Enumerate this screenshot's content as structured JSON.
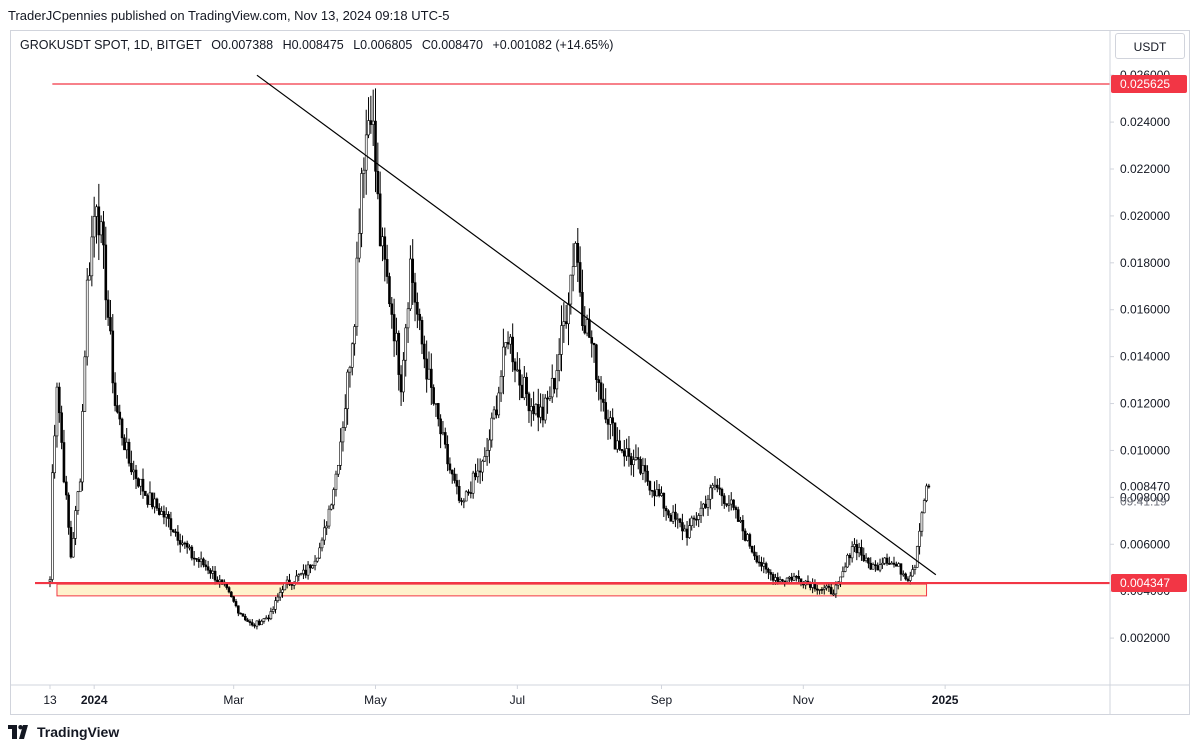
{
  "header": {
    "publisher": "TraderJCpennies published on TradingView.com, Nov 13, 2024 09:18 UTC-5"
  },
  "legend": {
    "symbol": "GROKUSDT SPOT, 1D, BITGET",
    "open": "O0.007388",
    "high": "H0.008475",
    "low": "L0.006805",
    "close": "C0.008470",
    "change": "+0.001082 (+14.65%)"
  },
  "unit_button": "USDT",
  "brand": {
    "name": "TradingView",
    "logo_icon": "tradingview-logo-icon"
  },
  "colors": {
    "candle": "#000000",
    "support_resistance": "#f23645",
    "zone_fill": "#fff2cc",
    "trendline": "#000000"
  },
  "chart_data": {
    "type": "candlestick",
    "x_tick_labels": [
      "13",
      "2024",
      "Mar",
      "May",
      "Jul",
      "Sep",
      "Nov",
      "2025"
    ],
    "y_ticks": [
      "0.002000",
      "0.004000",
      "0.006000",
      "0.008000",
      "0.010000",
      "0.012000",
      "0.014000",
      "0.016000",
      "0.018000",
      "0.020000",
      "0.022000",
      "0.024000",
      "0.026000"
    ],
    "y_tick_values": [
      0.002,
      0.004,
      0.006,
      0.008,
      0.01,
      0.012,
      0.014,
      0.016,
      0.018,
      0.02,
      0.022,
      0.024,
      0.026
    ],
    "ylim": [
      0.0,
      0.0275
    ],
    "time_span": [
      "2023-12-13",
      "2025-02-28"
    ],
    "axis_date_ticks": [
      "2023-12-13",
      "2024-01-01",
      "2024-03-01",
      "2024-05-01",
      "2024-07-01",
      "2024-09-01",
      "2024-11-01",
      "2025-01-01"
    ],
    "last_price_label": "0.008470",
    "countdown_label": "09:41:19",
    "resistance_line": {
      "price": 0.025625,
      "label": "0.025625",
      "start": "2023-12-14"
    },
    "support_line": {
      "price": 0.004347,
      "label": "0.004347",
      "start": "2023-12-13"
    },
    "support_zone": {
      "top": 0.0043,
      "bottom": 0.0038,
      "start": "2023-12-16",
      "end": "2024-12-24"
    },
    "trendline": {
      "start": [
        "2024-03-11",
        0.026
      ],
      "end": [
        "2024-12-28",
        0.0047
      ]
    },
    "key_points": [
      {
        "date": "2023-12-13",
        "value": 0.0045
      },
      {
        "date": "2023-12-14",
        "value": 0.009
      },
      {
        "date": "2023-12-16",
        "value": 0.013
      },
      {
        "date": "2023-12-19",
        "value": 0.009
      },
      {
        "date": "2023-12-22",
        "value": 0.0055
      },
      {
        "date": "2023-12-26",
        "value": 0.009
      },
      {
        "date": "2023-12-29",
        "value": 0.017
      },
      {
        "date": "2024-01-02",
        "value": 0.021
      },
      {
        "date": "2024-01-06",
        "value": 0.017
      },
      {
        "date": "2024-01-10",
        "value": 0.012
      },
      {
        "date": "2024-01-16",
        "value": 0.0095
      },
      {
        "date": "2024-01-24",
        "value": 0.008
      },
      {
        "date": "2024-02-02",
        "value": 0.007
      },
      {
        "date": "2024-02-12",
        "value": 0.0055
      },
      {
        "date": "2024-02-19",
        "value": 0.005
      },
      {
        "date": "2024-02-27",
        "value": 0.004
      },
      {
        "date": "2024-03-03",
        "value": 0.0032
      },
      {
        "date": "2024-03-09",
        "value": 0.0025
      },
      {
        "date": "2024-03-17",
        "value": 0.003
      },
      {
        "date": "2024-03-22",
        "value": 0.0042
      },
      {
        "date": "2024-04-01",
        "value": 0.0048
      },
      {
        "date": "2024-04-08",
        "value": 0.006
      },
      {
        "date": "2024-04-14",
        "value": 0.009
      },
      {
        "date": "2024-04-18",
        "value": 0.012
      },
      {
        "date": "2024-04-22",
        "value": 0.016
      },
      {
        "date": "2024-04-25",
        "value": 0.022
      },
      {
        "date": "2024-04-29",
        "value": 0.025
      },
      {
        "date": "2024-05-03",
        "value": 0.019
      },
      {
        "date": "2024-05-08",
        "value": 0.016
      },
      {
        "date": "2024-05-12",
        "value": 0.013
      },
      {
        "date": "2024-05-16",
        "value": 0.018
      },
      {
        "date": "2024-05-20",
        "value": 0.015
      },
      {
        "date": "2024-05-26",
        "value": 0.012
      },
      {
        "date": "2024-06-01",
        "value": 0.0095
      },
      {
        "date": "2024-06-07",
        "value": 0.0075
      },
      {
        "date": "2024-06-11",
        "value": 0.0085
      },
      {
        "date": "2024-06-17",
        "value": 0.0095
      },
      {
        "date": "2024-06-22",
        "value": 0.012
      },
      {
        "date": "2024-06-27",
        "value": 0.015
      },
      {
        "date": "2024-07-02",
        "value": 0.013
      },
      {
        "date": "2024-07-07",
        "value": 0.012
      },
      {
        "date": "2024-07-12",
        "value": 0.0115
      },
      {
        "date": "2024-07-17",
        "value": 0.013
      },
      {
        "date": "2024-07-22",
        "value": 0.016
      },
      {
        "date": "2024-07-26",
        "value": 0.019
      },
      {
        "date": "2024-07-29",
        "value": 0.016
      },
      {
        "date": "2024-08-02",
        "value": 0.0145
      },
      {
        "date": "2024-08-06",
        "value": 0.0125
      },
      {
        "date": "2024-08-12",
        "value": 0.0105
      },
      {
        "date": "2024-08-20",
        "value": 0.0095
      },
      {
        "date": "2024-08-28",
        "value": 0.0085
      },
      {
        "date": "2024-09-05",
        "value": 0.0072
      },
      {
        "date": "2024-09-12",
        "value": 0.0065
      },
      {
        "date": "2024-09-18",
        "value": 0.0075
      },
      {
        "date": "2024-09-24",
        "value": 0.0085
      },
      {
        "date": "2024-09-30",
        "value": 0.0078
      },
      {
        "date": "2024-10-05",
        "value": 0.0068
      },
      {
        "date": "2024-10-10",
        "value": 0.0058
      },
      {
        "date": "2024-10-16",
        "value": 0.0048
      },
      {
        "date": "2024-10-22",
        "value": 0.0045
      },
      {
        "date": "2024-10-28",
        "value": 0.0046
      },
      {
        "date": "2024-11-03",
        "value": 0.0044
      },
      {
        "date": "2024-11-09",
        "value": 0.0041
      },
      {
        "date": "2024-11-13",
        "value": 0.004
      },
      {
        "date": "2024-11-16",
        "value": 0.0042
      },
      {
        "date": "2024-11-19",
        "value": 0.005
      },
      {
        "date": "2024-11-22",
        "value": 0.006
      },
      {
        "date": "2024-11-25",
        "value": 0.0058
      },
      {
        "date": "2024-11-28",
        "value": 0.0052
      },
      {
        "date": "2024-12-02",
        "value": 0.005
      },
      {
        "date": "2024-12-06",
        "value": 0.0055
      },
      {
        "date": "2024-12-09",
        "value": 0.0052
      },
      {
        "date": "2024-12-13",
        "value": 0.0049
      },
      {
        "date": "2024-12-16",
        "value": 0.0046
      },
      {
        "date": "2024-12-19",
        "value": 0.0052
      },
      {
        "date": "2024-12-21",
        "value": 0.0068
      },
      {
        "date": "2024-12-23",
        "value": 0.008
      },
      {
        "date": "2024-12-25",
        "value": 0.0085
      }
    ]
  }
}
